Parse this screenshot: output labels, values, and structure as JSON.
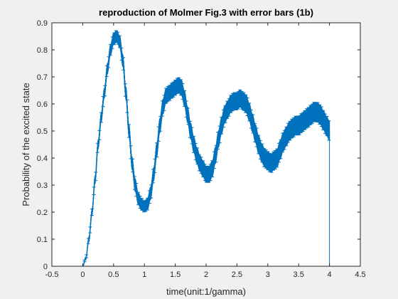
{
  "chart_data": {
    "type": "line",
    "title": "reproduction of Molmer Fig.3 with error bars (1b)",
    "xlabel": "time(unit:1/gamma)",
    "ylabel": "Probability of the excited state",
    "xlim": [
      -0.5,
      4.5
    ],
    "ylim": [
      0,
      0.9
    ],
    "xticks": [
      "-0.5",
      "0",
      "0.5",
      "1",
      "1.5",
      "2",
      "2.5",
      "3",
      "3.5",
      "4",
      "4.5"
    ],
    "yticks": [
      "0",
      "0.1",
      "0.2",
      "0.3",
      "0.4",
      "0.5",
      "0.6",
      "0.7",
      "0.8",
      "0.9"
    ],
    "grid": false,
    "color": "#0072BD",
    "series": [
      {
        "x": [
          0,
          0.05,
          0.1,
          0.15,
          0.2,
          0.25,
          0.3,
          0.35,
          0.4,
          0.45,
          0.5,
          0.55,
          0.6,
          0.65,
          0.7,
          0.75,
          0.8,
          0.85,
          0.9,
          0.95,
          1.0,
          1.05,
          1.1,
          1.15,
          1.2,
          1.25,
          1.3,
          1.35,
          1.4,
          1.45,
          1.5,
          1.55,
          1.6,
          1.65,
          1.7,
          1.75,
          1.8,
          1.85,
          1.9,
          1.95,
          2.0,
          2.05,
          2.1,
          2.15,
          2.2,
          2.25,
          2.3,
          2.35,
          2.4,
          2.45,
          2.5,
          2.55,
          2.6,
          2.65,
          2.7,
          2.75,
          2.8,
          2.85,
          2.9,
          2.95,
          3.0,
          3.05,
          3.1,
          3.15,
          3.2,
          3.25,
          3.3,
          3.35,
          3.4,
          3.45,
          3.5,
          3.55,
          3.6,
          3.65,
          3.7,
          3.75,
          3.8,
          3.85,
          3.9,
          3.95,
          4.0
        ],
        "y": [
          0.0,
          0.03,
          0.1,
          0.2,
          0.32,
          0.45,
          0.55,
          0.64,
          0.73,
          0.8,
          0.84,
          0.85,
          0.83,
          0.76,
          0.64,
          0.5,
          0.38,
          0.3,
          0.25,
          0.23,
          0.22,
          0.23,
          0.27,
          0.34,
          0.43,
          0.52,
          0.59,
          0.63,
          0.64,
          0.65,
          0.66,
          0.67,
          0.66,
          0.62,
          0.56,
          0.5,
          0.45,
          0.41,
          0.38,
          0.36,
          0.34,
          0.34,
          0.36,
          0.41,
          0.47,
          0.52,
          0.56,
          0.58,
          0.6,
          0.61,
          0.61,
          0.62,
          0.61,
          0.6,
          0.57,
          0.53,
          0.49,
          0.45,
          0.42,
          0.4,
          0.39,
          0.38,
          0.39,
          0.4,
          0.43,
          0.46,
          0.48,
          0.5,
          0.51,
          0.52,
          0.52,
          0.53,
          0.54,
          0.55,
          0.56,
          0.57,
          0.57,
          0.56,
          0.54,
          0.52,
          0.5
        ],
        "error": [
          0.0,
          0.005,
          0.01,
          0.012,
          0.015,
          0.017,
          0.018,
          0.019,
          0.02,
          0.02,
          0.022,
          0.022,
          0.022,
          0.023,
          0.023,
          0.024,
          0.024,
          0.024,
          0.023,
          0.022,
          0.02,
          0.022,
          0.024,
          0.025,
          0.026,
          0.027,
          0.028,
          0.028,
          0.028,
          0.028,
          0.028,
          0.028,
          0.029,
          0.029,
          0.03,
          0.03,
          0.03,
          0.03,
          0.03,
          0.03,
          0.03,
          0.03,
          0.03,
          0.031,
          0.031,
          0.031,
          0.032,
          0.032,
          0.032,
          0.032,
          0.032,
          0.032,
          0.033,
          0.033,
          0.033,
          0.034,
          0.034,
          0.034,
          0.034,
          0.034,
          0.034,
          0.034,
          0.034,
          0.034,
          0.035,
          0.035,
          0.035,
          0.035,
          0.035,
          0.035,
          0.035,
          0.035,
          0.035,
          0.036,
          0.036,
          0.036,
          0.036,
          0.036,
          0.036,
          0.036,
          0.036
        ]
      }
    ]
  }
}
